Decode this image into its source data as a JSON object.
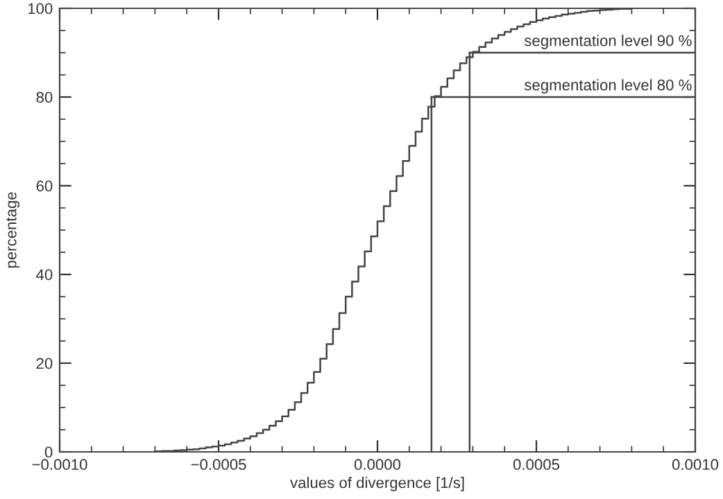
{
  "chart_data": {
    "type": "step",
    "xlabel": "values of divergence [1/s]",
    "ylabel": "percentage",
    "x": [
      -0.0007,
      -0.00068,
      -0.00066,
      -0.00064,
      -0.00062,
      -0.0006,
      -0.00058,
      -0.00056,
      -0.00054,
      -0.00052,
      -0.0005,
      -0.00048,
      -0.00046,
      -0.00044,
      -0.00042,
      -0.0004,
      -0.00038,
      -0.00036,
      -0.00034,
      -0.00032,
      -0.0003,
      -0.00028,
      -0.00026,
      -0.00024,
      -0.00022,
      -0.0002,
      -0.00018,
      -0.00016,
      -0.00014,
      -0.00012,
      -0.0001,
      -8e-05,
      -6e-05,
      -4e-05,
      -2e-05,
      0.0,
      2e-05,
      4e-05,
      6e-05,
      8e-05,
      0.0001,
      0.00012,
      0.00014,
      0.00016,
      0.00018,
      0.0002,
      0.00022,
      0.00024,
      0.00026,
      0.00028,
      0.0003,
      0.00032,
      0.00034,
      0.00036,
      0.00038,
      0.0004,
      0.00042,
      0.00044,
      0.00046,
      0.00048,
      0.0005,
      0.00052,
      0.00054,
      0.00056,
      0.00058,
      0.0006,
      0.00062,
      0.00064,
      0.00066,
      0.00068,
      0.0007,
      0.00072,
      0.00074,
      0.00076,
      0.00078,
      0.0008
    ],
    "series": [
      {
        "color": "#444444",
        "values": [
          0.1,
          0.2,
          0.2,
          0.3,
          0.4,
          0.5,
          0.6,
          0.8,
          1.0,
          1.2,
          1.4,
          1.7,
          2.1,
          2.5,
          3.0,
          3.5,
          4.2,
          5.0,
          5.9,
          6.9,
          8,
          9.5,
          11.2,
          13.3,
          15.6,
          18,
          21,
          24.3,
          27.7,
          31.3,
          35,
          38.4,
          41.8,
          45.2,
          48.6,
          52,
          55.4,
          58.8,
          62.2,
          65.6,
          69,
          72.2,
          75.1,
          77.8,
          80.2,
          82.3,
          84.2,
          86,
          87.6,
          89,
          90.2,
          91.3,
          92.3,
          93.2,
          94,
          94.7,
          95.3,
          95.9,
          96.4,
          96.9,
          97.3,
          97.7,
          98,
          98.3,
          98.6,
          98.8,
          99,
          99.2,
          99.4,
          99.5,
          99.6,
          99.7,
          99.8,
          99.9,
          99.9,
          100
        ]
      }
    ],
    "xlim": [
      -0.001,
      0.001
    ],
    "xticks": [
      {
        "value": -0.001,
        "label": "−0.0010"
      },
      {
        "value": -0.0005,
        "label": "−0.0005"
      },
      {
        "value": 0,
        "label": "0.0000"
      },
      {
        "value": 0.0005,
        "label": "0.0005"
      },
      {
        "value": 0.001,
        "label": "0.0010"
      }
    ],
    "ylim": [
      0,
      100
    ],
    "yticks": [
      0,
      20,
      40,
      60,
      80,
      100
    ],
    "ref_lines": [
      {
        "axis": "y",
        "value": 80,
        "label": "segmentation level 80 %",
        "color": "#444444"
      },
      {
        "axis": "y",
        "value": 90,
        "label": "segmentation level 90 %",
        "color": "#444444"
      },
      {
        "axis": "x",
        "value": 0.00017,
        "color": "#444444"
      },
      {
        "axis": "x",
        "value": 0.00029,
        "color": "#444444"
      }
    ],
    "grid": false,
    "legend": false
  }
}
